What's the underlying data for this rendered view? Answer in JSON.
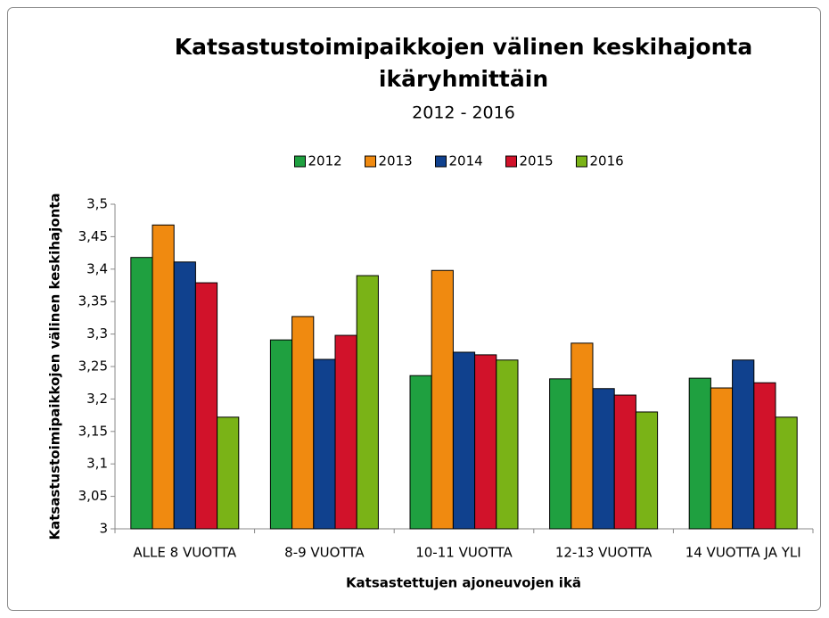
{
  "chart_data": {
    "type": "bar",
    "title": [
      "Katsastustoimipaikkojen välinen keskihajonta",
      "ikäryhmittäin"
    ],
    "subtitle": "2012 - 2016",
    "x_label": "Katsastettujen ajoneuvojen ikä",
    "y_label": "Katsastustoimipaikkojen välinen keskihajonta",
    "categories": [
      "ALLE 8 VUOTTA",
      "8-9 VUOTTA",
      "10-11 VUOTTA",
      "12-13 VUOTTA",
      "14 VUOTTA JA YLI"
    ],
    "series": [
      {
        "name": "2012",
        "color": "#1fa040",
        "values": [
          3.418,
          3.291,
          3.236,
          3.231,
          3.232
        ]
      },
      {
        "name": "2013",
        "color": "#f08a10",
        "values": [
          3.468,
          3.327,
          3.398,
          3.286,
          3.217
        ]
      },
      {
        "name": "2014",
        "color": "#10418e",
        "values": [
          3.411,
          3.261,
          3.272,
          3.216,
          3.26
        ]
      },
      {
        "name": "2015",
        "color": "#d1122a",
        "values": [
          3.379,
          3.298,
          3.268,
          3.206,
          3.225
        ]
      },
      {
        "name": "2016",
        "color": "#7ab317",
        "values": [
          3.172,
          3.39,
          3.26,
          3.18,
          3.172
        ]
      }
    ],
    "ylim": [
      3,
      3.5
    ],
    "yticks": [
      3,
      {
        "value": 3.05,
        "label": "3,05"
      },
      {
        "value": 3.1,
        "label": "3,1"
      },
      {
        "value": 3.15,
        "label": "3,15"
      },
      {
        "value": 3.2,
        "label": "3,2"
      },
      {
        "value": 3.25,
        "label": "3,25"
      },
      {
        "value": 3.3,
        "label": "3,3"
      },
      {
        "value": 3.35,
        "label": "3,35"
      },
      {
        "value": 3.4,
        "label": "3,4"
      },
      {
        "value": 3.45,
        "label": "3,45"
      },
      {
        "value": 3.5,
        "label": "3,5"
      }
    ],
    "grid": false,
    "legend": "top"
  }
}
